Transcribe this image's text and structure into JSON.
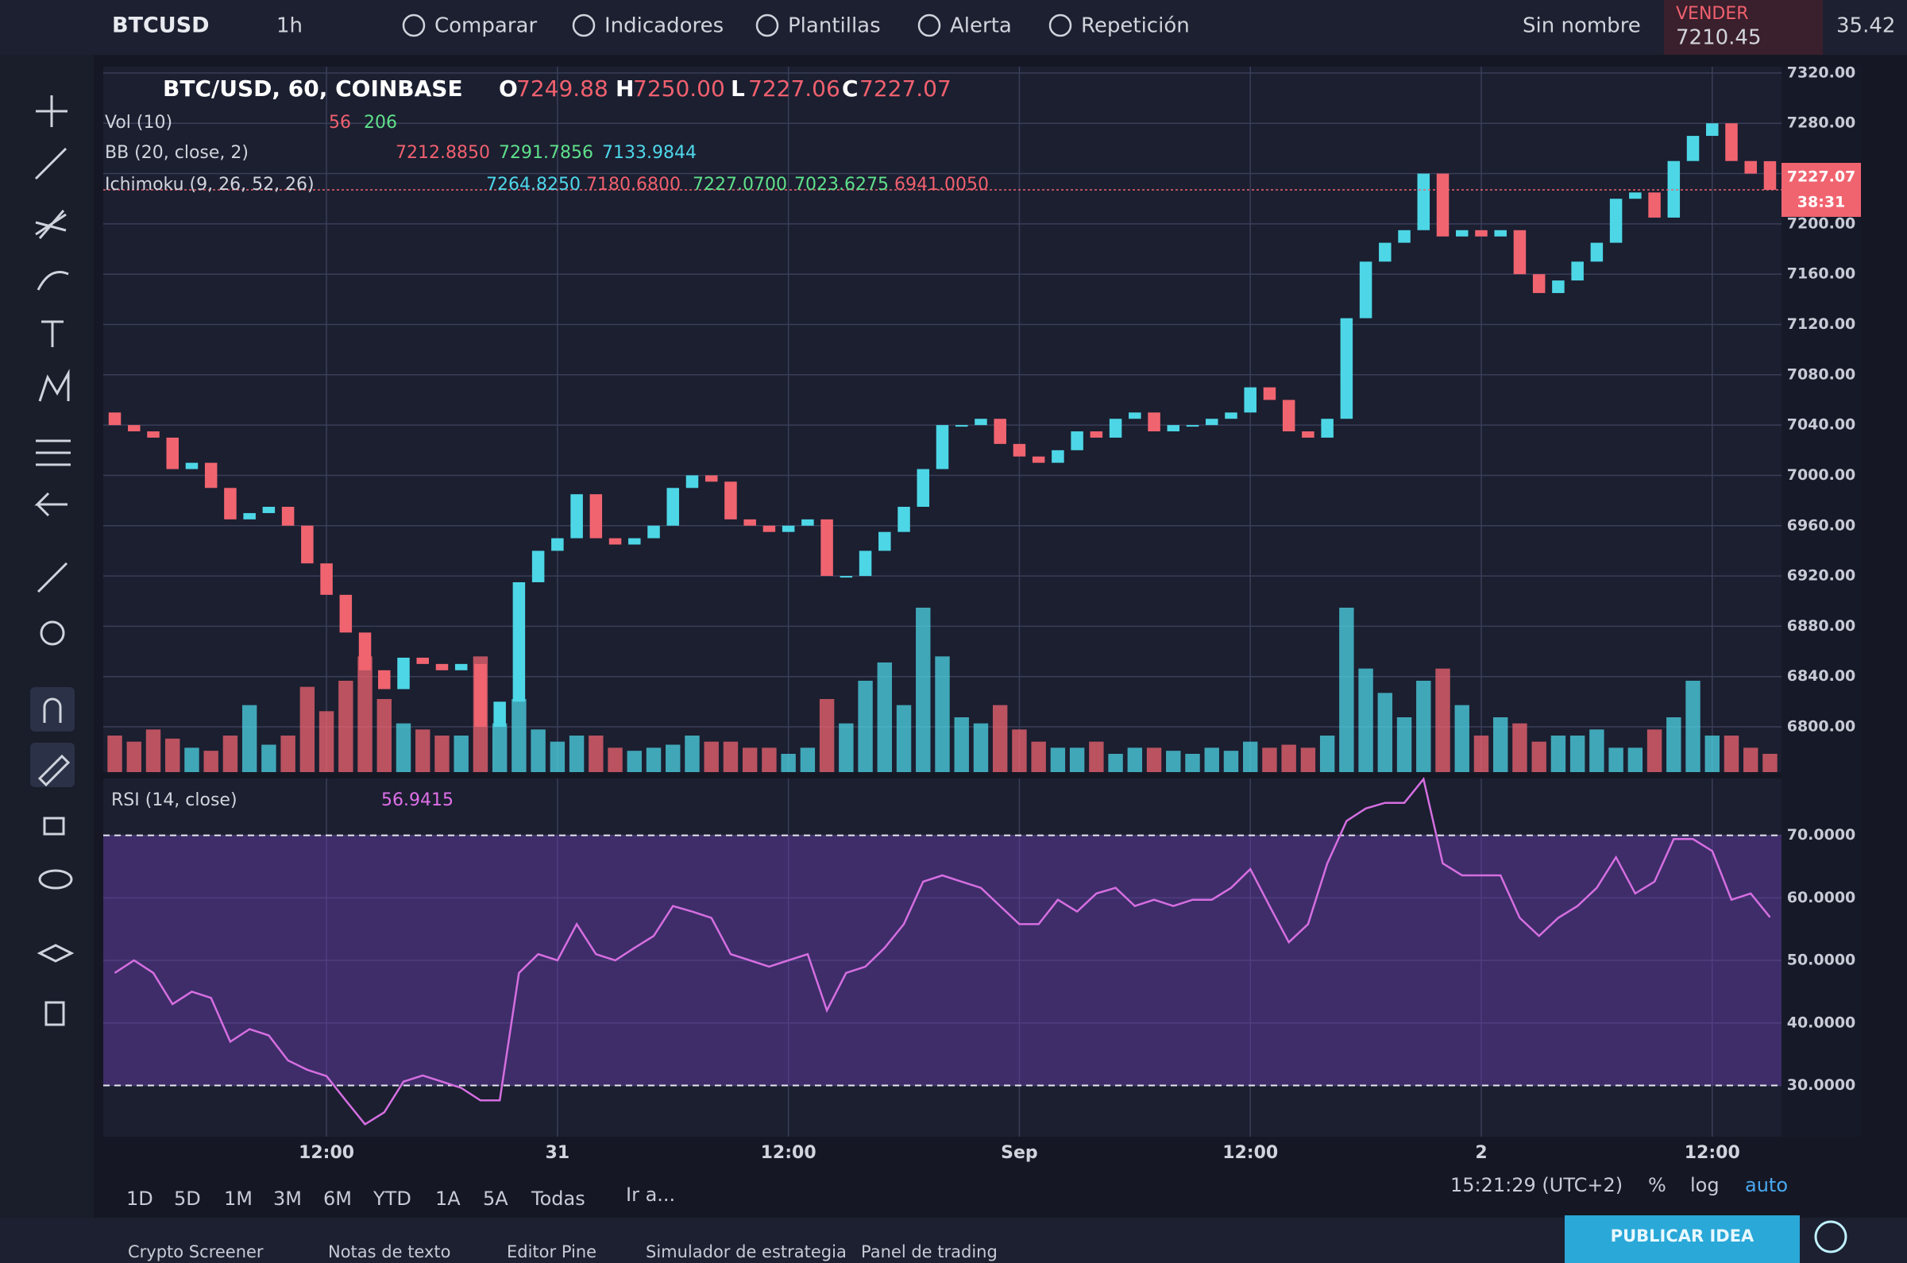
{
  "toolbar": {
    "symbol": "BTCUSD",
    "interval": "1h",
    "items": [
      "Comparar",
      "Indicadores",
      "Plantillas",
      "Alerta",
      "Repetición"
    ],
    "layout": "Sin nombre",
    "sell_label": "VENDER",
    "sell_price": "7210.45",
    "spread": "35.42"
  },
  "legend": {
    "symbol": "BTC/USD, 60, COINBASE",
    "ohlc": [
      [
        "O",
        "7249.88"
      ],
      [
        "H",
        "7250.00"
      ],
      [
        "L",
        "7227.06"
      ],
      [
        "C",
        "7227.07"
      ]
    ]
  },
  "indicators": [
    {
      "name": "Vol (10)",
      "values": [
        "56",
        "206"
      ]
    },
    {
      "name": "BB (20, close, 2)",
      "values": [
        "7212.8850",
        "7291.7856",
        "7133.9844"
      ]
    },
    {
      "name": "Ichimoku (9, 26, 52, 26)",
      "values": [
        "7264.8250",
        "7180.6800",
        "7227.0700",
        "7023.6275",
        "6941.0050"
      ]
    }
  ],
  "price_flags": [
    "7227.07",
    "38:31"
  ],
  "chart_data": [
    {
      "type": "candlestick",
      "color_up": "#4dd6e6",
      "color_down": "#f06470",
      "open": [
        7050,
        7040,
        7035,
        7030,
        7005,
        7010,
        6990,
        6965,
        6970,
        6975,
        6960,
        6930,
        6905,
        6875,
        6845,
        6830,
        6855,
        6850,
        6845,
        6850,
        6800,
        6820,
        6915,
        6940,
        6950,
        6985,
        6950,
        6945,
        6950,
        6960,
        6990,
        7000,
        6995,
        6965,
        6960,
        6955,
        6960,
        6965,
        6920,
        6920,
        6940,
        6955,
        6975,
        7005,
        7040,
        7040,
        7045,
        7025,
        7015,
        7010,
        7020,
        7035,
        7030,
        7045,
        7050,
        7035,
        7040,
        7040,
        7045,
        7050,
        7070,
        7060,
        7035,
        7030,
        7045,
        7125,
        7170,
        7185,
        7195,
        7240,
        7190,
        7195,
        7190,
        7195,
        7160,
        7145,
        7155,
        7170,
        7185,
        7220,
        7225,
        7205,
        7250,
        7270,
        7280,
        7250,
        7249.88
      ],
      "close": [
        7040,
        7035,
        7030,
        7005,
        7010,
        6990,
        6965,
        6970,
        6975,
        6960,
        6930,
        6905,
        6875,
        6845,
        6830,
        6855,
        6850,
        6845,
        6850,
        6800,
        6820,
        6915,
        6940,
        6950,
        6985,
        6950,
        6945,
        6950,
        6960,
        6990,
        7000,
        6995,
        6965,
        6960,
        6955,
        6960,
        6965,
        6920,
        6920,
        6940,
        6955,
        6975,
        7005,
        7040,
        7040,
        7045,
        7025,
        7015,
        7010,
        7020,
        7035,
        7030,
        7045,
        7050,
        7035,
        7040,
        7040,
        7045,
        7050,
        7070,
        7060,
        7035,
        7030,
        7045,
        7125,
        7170,
        7185,
        7195,
        7240,
        7190,
        7195,
        7190,
        7195,
        7160,
        7145,
        7155,
        7170,
        7185,
        7220,
        7225,
        7205,
        7250,
        7270,
        7280,
        7250,
        7240,
        7227.07
      ],
      "xlim": [
        -0.6,
        86.6
      ],
      "ylim": [
        6764,
        7325
      ],
      "grid": true,
      "yticks": [
        {
          "value": 6800,
          "label": "6800.00"
        },
        {
          "value": 6840,
          "label": "6840.00"
        },
        {
          "value": 6880,
          "label": "6880.00"
        },
        {
          "value": 6920,
          "label": "6920.00"
        },
        {
          "value": 6960,
          "label": "6960.00"
        },
        {
          "value": 7000,
          "label": "7000.00"
        },
        {
          "value": 7040,
          "label": "7040.00"
        },
        {
          "value": 7080,
          "label": "7080.00"
        },
        {
          "value": 7120,
          "label": "7120.00"
        },
        {
          "value": 7160,
          "label": "7160.00"
        },
        {
          "value": 7200,
          "label": "7200.00"
        },
        {
          "value": 7240,
          "label": "7240.00"
        },
        {
          "value": 7280,
          "label": "7280.00"
        },
        {
          "value": 7320,
          "label": "7320.00"
        }
      ]
    },
    {
      "type": "bar",
      "values": [
        60,
        50,
        70,
        55,
        40,
        35,
        60,
        110,
        45,
        60,
        140,
        100,
        150,
        190,
        120,
        80,
        70,
        60,
        60,
        190,
        80,
        120,
        70,
        50,
        60,
        60,
        40,
        35,
        40,
        45,
        60,
        50,
        50,
        40,
        40,
        30,
        40,
        120,
        80,
        150,
        180,
        110,
        270,
        190,
        90,
        80,
        110,
        70,
        50,
        40,
        40,
        50,
        30,
        40,
        40,
        35,
        30,
        40,
        35,
        50,
        40,
        45,
        40,
        60,
        270,
        170,
        130,
        90,
        150,
        170,
        110,
        60,
        90,
        80,
        50,
        60,
        60,
        70,
        40,
        40,
        70,
        90,
        150,
        60,
        60,
        40,
        30
      ],
      "xlim": [
        -0.6,
        86.6
      ],
      "ylim": [
        0,
        450
      ]
    },
    {
      "type": "line",
      "name": "RSI (14, close)",
      "last": "56.9415",
      "color": "#d56ee0",
      "values": [
        48,
        50,
        48,
        43,
        45,
        44,
        37,
        39,
        38,
        34,
        32.5,
        31.5,
        27.6,
        23.8,
        25.7,
        30.6,
        31.6,
        30.6,
        29.6,
        27.6,
        27.6,
        48,
        51,
        50,
        55.8,
        51,
        50,
        52,
        53.9,
        58.7,
        57.8,
        56.8,
        51,
        50,
        49,
        50,
        51,
        42,
        48,
        49,
        52,
        55.8,
        62.6,
        63.6,
        62.6,
        61.6,
        58.7,
        55.8,
        55.8,
        59.7,
        57.8,
        60.7,
        61.6,
        58.7,
        59.7,
        58.7,
        59.7,
        59.7,
        61.6,
        64.6,
        58.7,
        52.9,
        55.8,
        65.5,
        72.3,
        74.3,
        75.2,
        75.2,
        79,
        65.5,
        63.6,
        63.6,
        63.6,
        56.8,
        53.9,
        56.8,
        58.7,
        61.6,
        66.5,
        60.7,
        62.6,
        69.4,
        69.4,
        67.5,
        59.7,
        60.7,
        56.9
      ],
      "bands": [
        70,
        30
      ],
      "xlim": [
        -0.6,
        86.6
      ],
      "ylim": [
        21.8,
        79.1
      ],
      "grid": true,
      "yticks": [
        {
          "value": 30,
          "label": "30.0000"
        },
        {
          "value": 40,
          "label": "40.0000"
        },
        {
          "value": 50,
          "label": "50.0000"
        },
        {
          "value": 60,
          "label": "60.0000"
        },
        {
          "value": 70,
          "label": "70.0000"
        }
      ],
      "xticks": [
        {
          "value": 11,
          "label": "12:00"
        },
        {
          "value": 23,
          "label": "31"
        },
        {
          "value": 35,
          "label": "12:00"
        },
        {
          "value": 47,
          "label": "Sep"
        },
        {
          "value": 59,
          "label": "12:00"
        },
        {
          "value": 71,
          "label": "2"
        },
        {
          "value": 83,
          "label": "12:00"
        }
      ]
    }
  ],
  "range_bar": {
    "ranges": [
      "1D",
      "5D",
      "1M",
      "3M",
      "6M",
      "YTD",
      "1A",
      "5A",
      "Todas"
    ],
    "goto": "Ir a...",
    "clock": "15:21:29 (UTC+2)",
    "options": [
      "%",
      "log",
      "auto"
    ]
  },
  "tabs": [
    "Crypto Screener",
    "Notas de texto",
    "Editor Pine",
    "Simulador de estrategia",
    "Panel de trading"
  ],
  "publish": "PUBLICAR IDEA"
}
